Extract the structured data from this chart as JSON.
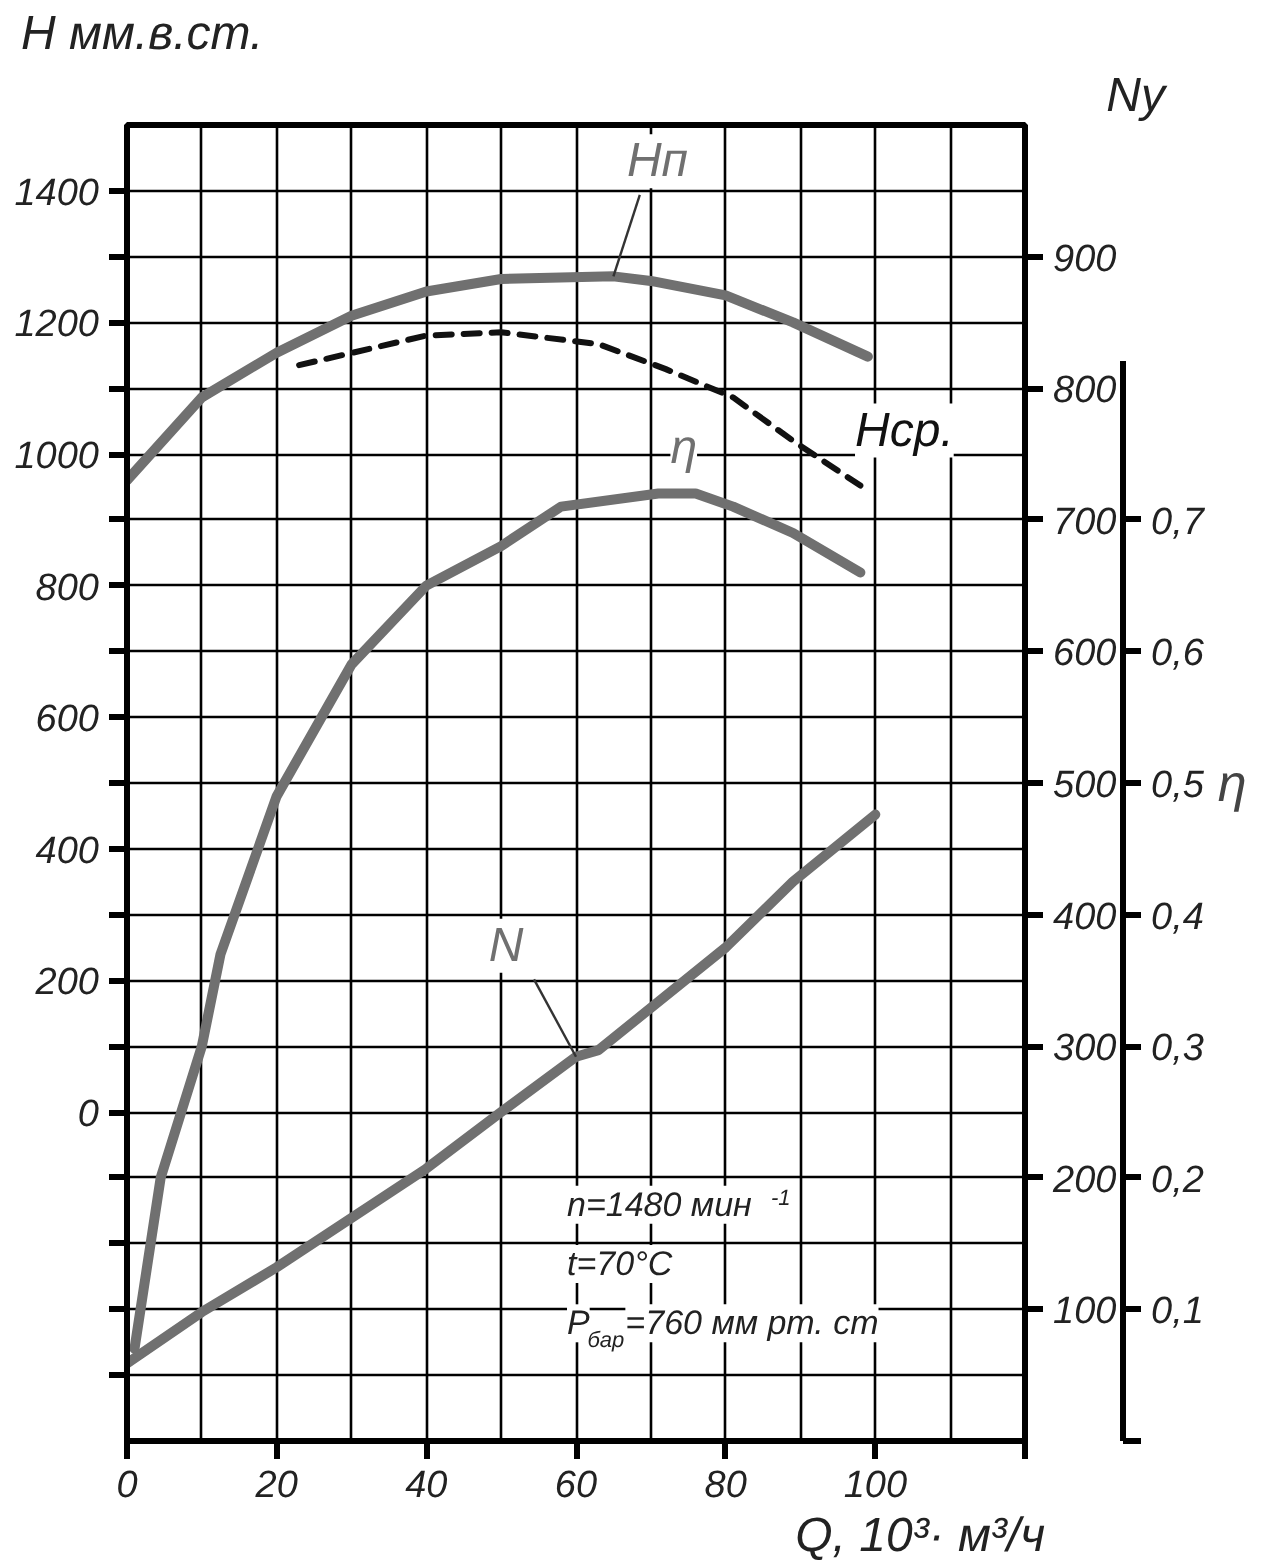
{
  "chart_data": {
    "type": "line",
    "xlabel": "Q, 10³· м³/ч",
    "ylabel": "H мм.в.ст.",
    "y2label": "Ny",
    "y3label": "η",
    "xlim": [
      0,
      120
    ],
    "xticks": [
      0,
      20,
      40,
      60,
      80,
      100,
      {
        "value": 120,
        "label": null
      }
    ],
    "ylim": [
      -500,
      1500
    ],
    "yticks": [
      {
        "value": -400,
        "label": null
      },
      {
        "value": -300,
        "label": null
      },
      {
        "value": -200,
        "label": null
      },
      {
        "value": -100,
        "label": null
      },
      0,
      {
        "value": 100,
        "label": null
      },
      200,
      {
        "value": 300,
        "label": null
      },
      400,
      {
        "value": 500,
        "label": null
      },
      600,
      {
        "value": 700,
        "label": null
      },
      800,
      {
        "value": 900,
        "label": null
      },
      1000,
      {
        "value": 1100,
        "label": null
      },
      1200,
      {
        "value": 1300,
        "label": null
      },
      1400
    ],
    "y2lim": [
      0,
      1000
    ],
    "y2ticks": [
      100,
      200,
      300,
      400,
      500,
      600,
      700,
      800,
      900
    ],
    "y3lim": [
      0,
      1
    ],
    "y3ticks": [
      {
        "value": 0,
        "label": null
      },
      {
        "value": 0.1,
        "label": "0,1"
      },
      {
        "value": 0.2,
        "label": "0,2"
      },
      {
        "value": 0.3,
        "label": "0,3"
      },
      {
        "value": 0.4,
        "label": "0,4"
      },
      {
        "value": 0.5,
        "label": "0,5"
      },
      {
        "value": 0.6,
        "label": "0,6"
      },
      {
        "value": 0.7,
        "label": "0,7"
      }
    ],
    "grid": true,
    "legend": false,
    "marker": "none",
    "series": [
      {
        "name": "Hп",
        "color": "#707070",
        "line_style": "solid",
        "x": [
          0,
          10,
          20,
          30,
          40,
          50,
          65,
          70,
          80,
          89,
          99
        ],
        "values": [
          960,
          1086,
          1154,
          1210,
          1247,
          1266,
          1270,
          1263,
          1241,
          1200,
          1148
        ]
      },
      {
        "name": "Hср.",
        "color": "#111111",
        "line_style": "dashed",
        "x": [
          23,
          40,
          50,
          63,
          72,
          81,
          89,
          98
        ],
        "values": [
          1135,
          1180,
          1185,
          1167,
          1129,
          1086,
          1020,
          952
        ]
      },
      {
        "name": "η",
        "color": "#707070",
        "line_style": "solid",
        "axis": "y3",
        "x": [
          1,
          4.5,
          10,
          12.5,
          20,
          30,
          40,
          50,
          58,
          71,
          76,
          81,
          89,
          98
        ],
        "values": [
          0.07,
          0.2,
          0.3,
          0.37,
          0.49,
          0.59,
          0.65,
          0.68,
          0.71,
          0.72,
          0.72,
          0.71,
          0.69,
          0.66
        ]
      },
      {
        "name": "N",
        "color": "#707070",
        "line_style": "solid",
        "axis": "y2",
        "x": [
          0,
          10,
          20,
          40,
          50,
          60,
          63,
          80,
          89,
          100
        ],
        "values": [
          59,
          98,
          132,
          207,
          250,
          292,
          297,
          375,
          425,
          476
        ]
      }
    ],
    "annotations": [
      "n=1480 мин$^{-1}$",
      "t=70°C",
      "P$_{бар}$=760 мм рт. ст"
    ]
  }
}
